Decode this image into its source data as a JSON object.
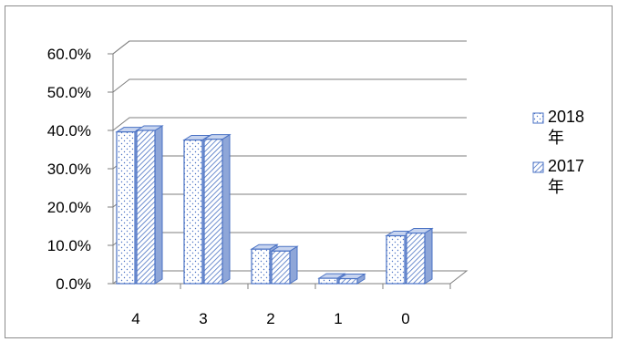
{
  "chart_data": {
    "type": "bar",
    "categories": [
      "4",
      "3",
      "2",
      "1",
      "0"
    ],
    "series": [
      {
        "name": "2018年",
        "values": [
          39.6,
          37.5,
          9.0,
          1.4,
          12.5
        ]
      },
      {
        "name": "2017年",
        "values": [
          40.0,
          37.7,
          8.5,
          1.3,
          13.2
        ]
      }
    ],
    "y_ticks": [
      "0.0%",
      "10.0%",
      "20.0%",
      "30.0%",
      "40.0%",
      "50.0%",
      "60.0%"
    ],
    "ylim": [
      0,
      60
    ],
    "grid": true,
    "legend": "right",
    "colors": {
      "bar_edge": "#4a72c4",
      "bar_fill": "#ffffff",
      "bar_top": "#c7d4ef",
      "bar_side": "#8ea6d8",
      "grid": "#7f7f7f"
    }
  }
}
